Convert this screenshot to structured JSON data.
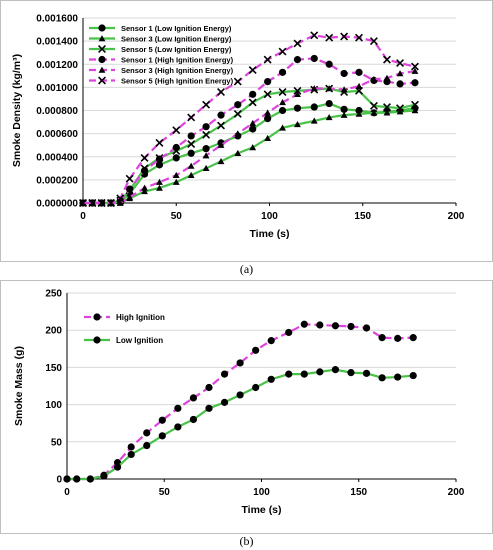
{
  "chart_data": [
    {
      "type": "line",
      "caption": "(a)",
      "xlabel": "Time (s)",
      "ylabel": "Smoke Density (kg/m³)",
      "xlim": [
        0,
        200
      ],
      "ylim": [
        0,
        0.0016
      ],
      "xticks": [
        "0",
        "50",
        "100",
        "150",
        "200"
      ],
      "yticks": [
        "0.000000",
        "0.000200",
        "0.000400",
        "0.000600",
        "0.000800",
        "0.001000",
        "0.001200",
        "0.001400",
        "0.001600"
      ],
      "grid": "horizontal",
      "legend_position": "top-left",
      "series": [
        {
          "name": "Sensor 1 (Low Ignition Energy)",
          "color": "#49c24a",
          "dash": "solid",
          "marker": "circle",
          "x": [
            0,
            5,
            10,
            15,
            20,
            25,
            33,
            41,
            50,
            58,
            66,
            74,
            83,
            91,
            99,
            107,
            115,
            124,
            132,
            140,
            148,
            156,
            163,
            170,
            178
          ],
          "y": [
            0,
            0,
            0,
            0,
            1e-05,
            8e-05,
            0.00025,
            0.00033,
            0.00039,
            0.00043,
            0.00047,
            0.00052,
            0.00058,
            0.00064,
            0.00073,
            0.0008,
            0.00082,
            0.00083,
            0.00086,
            0.00081,
            0.0008,
            0.00078,
            0.00079,
            0.0008,
            0.00082
          ]
        },
        {
          "name": "Sensor 3 (Low Ignition Energy)",
          "color": "#49c24a",
          "dash": "solid",
          "marker": "triangle",
          "x": [
            0,
            5,
            10,
            15,
            20,
            25,
            33,
            41,
            50,
            58,
            66,
            74,
            83,
            91,
            99,
            107,
            115,
            124,
            132,
            140,
            148,
            156,
            163,
            170,
            178
          ],
          "y": [
            0,
            0,
            0,
            0,
            0,
            4e-05,
            0.0001,
            0.00013,
            0.00018,
            0.00024,
            0.0003,
            0.00036,
            0.00043,
            0.00048,
            0.00056,
            0.00065,
            0.00068,
            0.00071,
            0.00074,
            0.00076,
            0.00077,
            0.00078,
            0.00078,
            0.00079,
            0.0008
          ]
        },
        {
          "name": "Sensor 5 (Low Ignition Energy)",
          "color": "#49c24a",
          "dash": "solid",
          "marker": "x",
          "x": [
            0,
            5,
            10,
            15,
            20,
            25,
            33,
            41,
            50,
            58,
            66,
            74,
            83,
            91,
            99,
            107,
            115,
            124,
            132,
            140,
            148,
            156,
            163,
            170,
            178
          ],
          "y": [
            0,
            0,
            0,
            0,
            2e-05,
            0.00011,
            0.0003,
            0.00039,
            0.00045,
            0.00051,
            0.00059,
            0.00067,
            0.00077,
            0.00087,
            0.00094,
            0.00096,
            0.00097,
            0.00098,
            0.00099,
            0.00096,
            0.00097,
            0.00084,
            0.00083,
            0.00082,
            0.00085
          ]
        },
        {
          "name": "Sensor 1 (High Ignition Energy)",
          "color": "#dd44dd",
          "dash": "dashed",
          "marker": "circle",
          "x": [
            0,
            5,
            10,
            15,
            20,
            25,
            33,
            41,
            50,
            58,
            66,
            74,
            83,
            91,
            99,
            107,
            115,
            124,
            132,
            140,
            148,
            156,
            163,
            170,
            178
          ],
          "y": [
            0,
            0,
            0,
            0,
            2e-05,
            0.00012,
            0.00028,
            0.00038,
            0.00048,
            0.00058,
            0.00066,
            0.00076,
            0.00085,
            0.00094,
            0.00105,
            0.00113,
            0.00124,
            0.00125,
            0.0012,
            0.00112,
            0.00113,
            0.00106,
            0.00105,
            0.00103,
            0.00104
          ]
        },
        {
          "name": "Sensor 3 (High Ignition Energy)",
          "color": "#dd44dd",
          "dash": "dashed",
          "marker": "triangle",
          "x": [
            0,
            5,
            10,
            15,
            20,
            25,
            33,
            41,
            50,
            58,
            66,
            74,
            83,
            91,
            99,
            107,
            115,
            124,
            132,
            140,
            148,
            156,
            163,
            170,
            178
          ],
          "y": [
            0,
            0,
            0,
            0,
            0,
            5e-05,
            0.00013,
            0.00018,
            0.00024,
            0.00032,
            0.00041,
            0.0005,
            0.0006,
            0.00069,
            0.00078,
            0.00087,
            0.00094,
            0.00099,
            0.00099,
            0.00098,
            0.00101,
            0.00107,
            0.00108,
            0.00112,
            0.00114
          ]
        },
        {
          "name": "Sensor 5 (High Ignition Energy)",
          "color": "#dd44dd",
          "dash": "dashed",
          "marker": "x",
          "x": [
            0,
            5,
            10,
            15,
            20,
            25,
            33,
            41,
            50,
            58,
            66,
            74,
            83,
            91,
            99,
            107,
            115,
            124,
            132,
            140,
            148,
            156,
            163,
            170,
            178
          ],
          "y": [
            0,
            0,
            0,
            0,
            4e-05,
            0.00021,
            0.00039,
            0.00052,
            0.00063,
            0.00074,
            0.00085,
            0.00096,
            0.00105,
            0.00115,
            0.00124,
            0.00131,
            0.00138,
            0.00145,
            0.00143,
            0.00144,
            0.00143,
            0.0014,
            0.00124,
            0.00121,
            0.00118
          ]
        }
      ]
    },
    {
      "type": "line",
      "caption": "(b)",
      "xlabel": "Time (s)",
      "ylabel": "Smoke Mass (g)",
      "xlim": [
        0,
        200
      ],
      "ylim": [
        0,
        250
      ],
      "xticks": [
        "0",
        "50",
        "100",
        "150",
        "200"
      ],
      "yticks": [
        "0",
        "50",
        "100",
        "150",
        "200",
        "250"
      ],
      "grid": "horizontal",
      "legend_position": "top-left",
      "series": [
        {
          "name": "High Ignition",
          "color": "#dd44dd",
          "dash": "dashed",
          "marker": "circle",
          "x": [
            0,
            5,
            12,
            19,
            26,
            33,
            41,
            49,
            57,
            65,
            73,
            81,
            89,
            97,
            105,
            114,
            122,
            130,
            138,
            146,
            154,
            162,
            170,
            178
          ],
          "y": [
            0,
            0,
            0,
            5,
            22,
            43,
            62,
            79,
            95,
            109,
            123,
            141,
            156,
            173,
            186,
            197,
            208,
            207,
            206,
            205,
            203,
            190,
            189,
            190
          ]
        },
        {
          "name": "Low Ignition",
          "color": "#49c24a",
          "dash": "solid",
          "marker": "circle",
          "x": [
            0,
            5,
            12,
            19,
            26,
            33,
            41,
            49,
            57,
            65,
            73,
            81,
            89,
            97,
            105,
            114,
            122,
            130,
            138,
            146,
            154,
            162,
            170,
            178
          ],
          "y": [
            0,
            0,
            0,
            4,
            16,
            33,
            45,
            58,
            70,
            80,
            95,
            103,
            113,
            123,
            134,
            141,
            141,
            144,
            147,
            143,
            142,
            136,
            137,
            139
          ]
        }
      ]
    }
  ]
}
